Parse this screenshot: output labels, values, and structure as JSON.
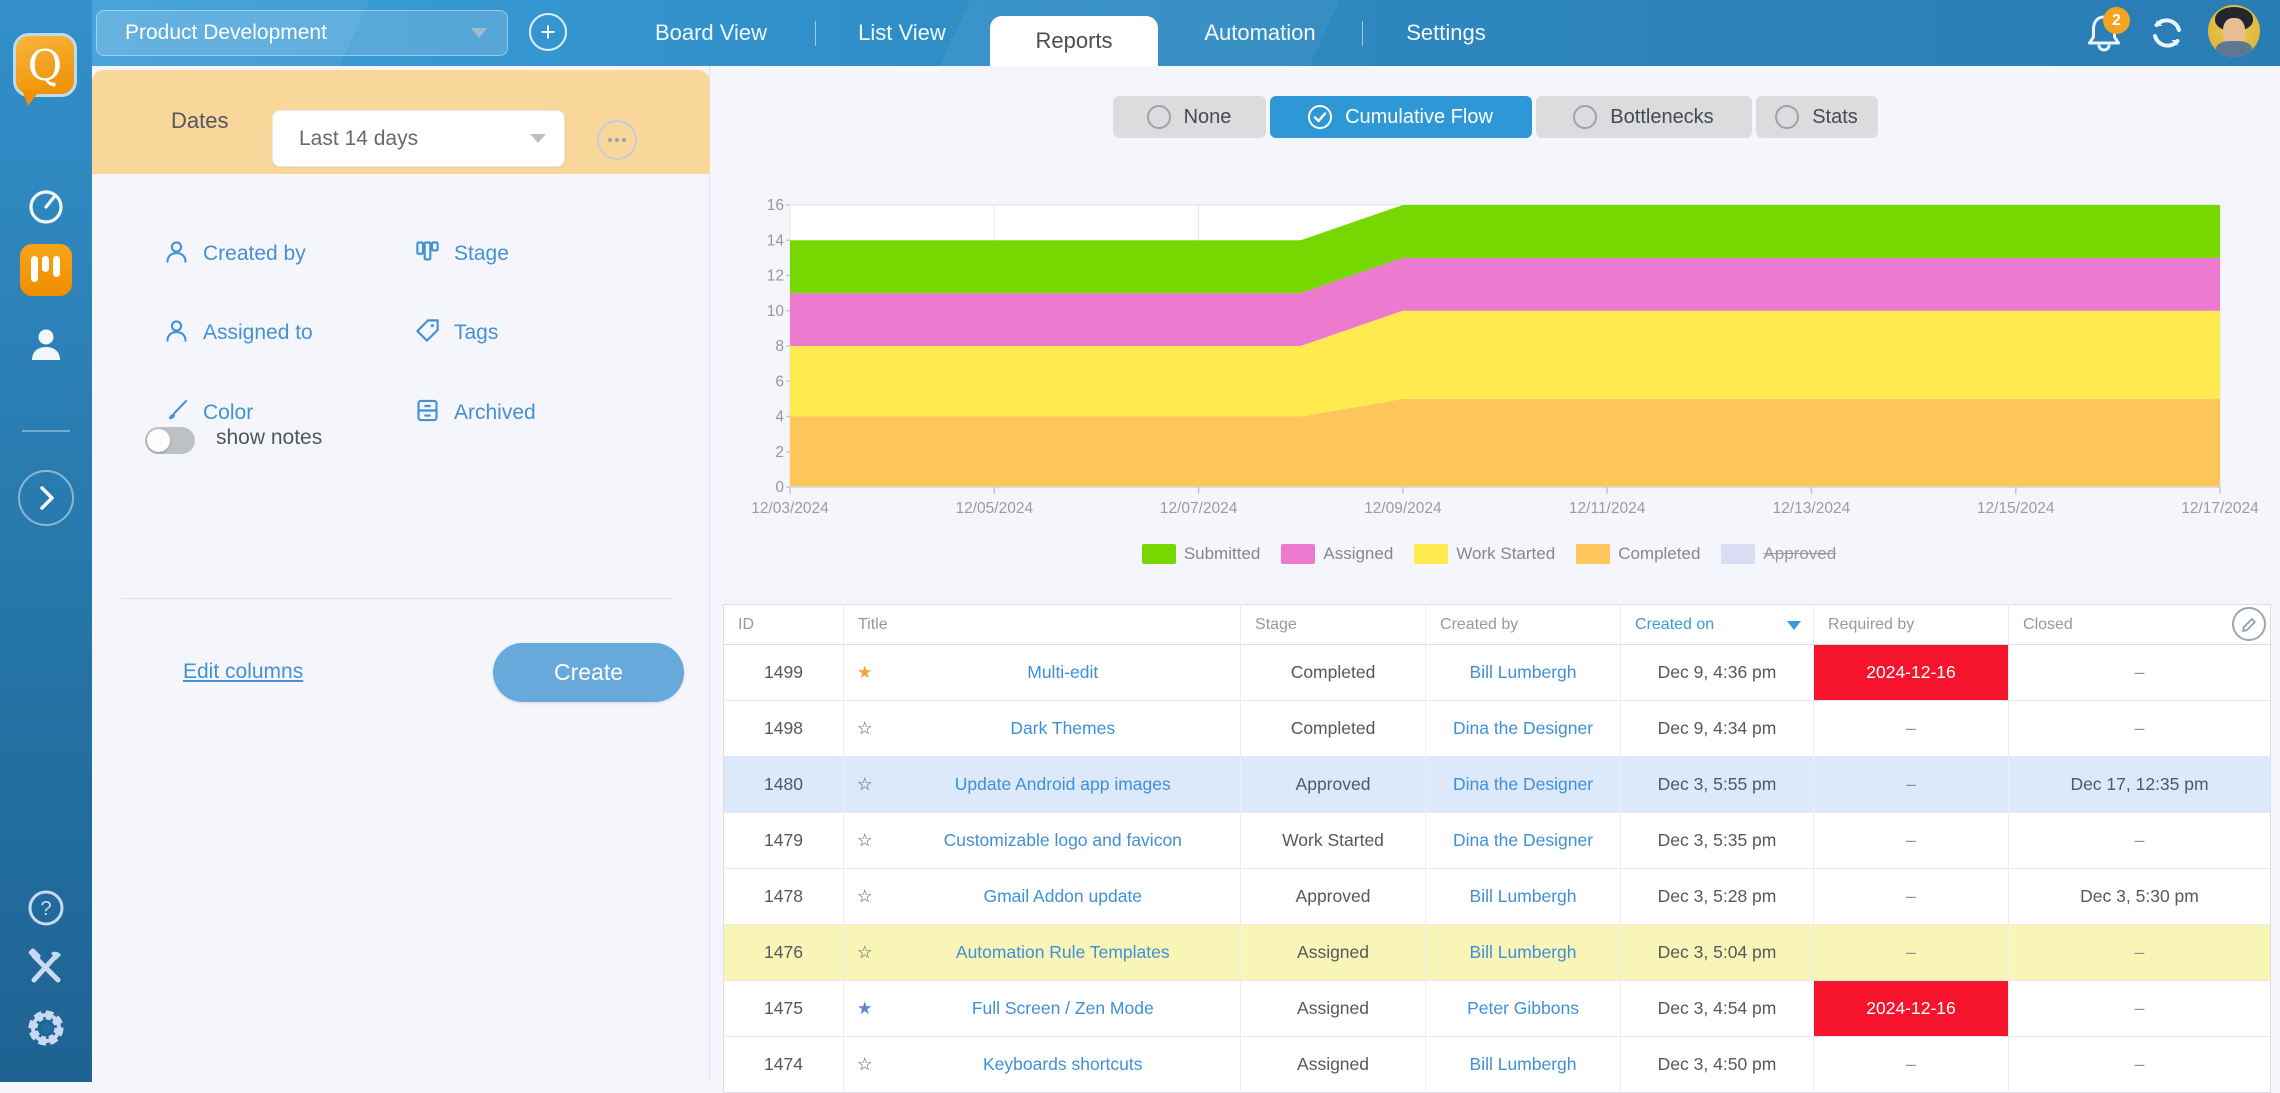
{
  "topbar": {
    "project_selector": "Product Development",
    "add_button": "+",
    "tabs": [
      {
        "label": "Board View",
        "active": false
      },
      {
        "label": "List View",
        "active": false
      },
      {
        "label": "Reports",
        "active": true
      },
      {
        "label": "Automation",
        "active": false
      },
      {
        "label": "Settings",
        "active": false
      }
    ],
    "notification_count": "2"
  },
  "filter_panel": {
    "dates_label": "Dates",
    "dates_value": "Last 14 days",
    "filters": [
      {
        "icon": "person-icon",
        "label": "Created by"
      },
      {
        "icon": "stage-icon",
        "label": "Stage"
      },
      {
        "icon": "person-icon",
        "label": "Assigned to"
      },
      {
        "icon": "tag-icon",
        "label": "Tags"
      },
      {
        "icon": "brush-icon",
        "label": "Color"
      },
      {
        "icon": "archive-icon",
        "label": "Archived"
      }
    ],
    "show_notes": {
      "label": "show notes",
      "enabled": false
    },
    "edit_columns_label": "Edit columns",
    "create_button_label": "Create"
  },
  "report_modes": {
    "active_color": "#2E97D5",
    "options": [
      {
        "label": "None",
        "selected": false
      },
      {
        "label": "Cumulative Flow",
        "selected": true
      },
      {
        "label": "Bottlenecks",
        "selected": false
      },
      {
        "label": "Stats",
        "selected": false
      }
    ]
  },
  "chart_data": {
    "type": "area",
    "stacked": true,
    "x": [
      "12/03/2024",
      "12/04/2024",
      "12/05/2024",
      "12/06/2024",
      "12/07/2024",
      "12/08/2024",
      "12/09/2024",
      "12/10/2024",
      "12/11/2024",
      "12/12/2024",
      "12/13/2024",
      "12/14/2024",
      "12/15/2024",
      "12/16/2024",
      "12/17/2024"
    ],
    "tick_every": 2,
    "series": [
      {
        "name": "Completed",
        "color": "#FFC65C",
        "values": [
          4,
          4,
          4,
          4,
          4,
          4,
          5,
          5,
          5,
          5,
          5,
          5,
          5,
          5,
          5
        ]
      },
      {
        "name": "Work Started",
        "color": "#FFEB4F",
        "values": [
          4,
          4,
          4,
          4,
          4,
          4,
          5,
          5,
          5,
          5,
          5,
          5,
          5,
          5,
          5
        ]
      },
      {
        "name": "Assigned",
        "color": "#EC7BD0",
        "values": [
          3,
          3,
          3,
          3,
          3,
          3,
          3,
          3,
          3,
          3,
          3,
          3,
          3,
          3,
          3
        ]
      },
      {
        "name": "Submitted",
        "color": "#76D701",
        "values": [
          3,
          3,
          3,
          3,
          3,
          3,
          3,
          3,
          3,
          3,
          3,
          3,
          3,
          3,
          3
        ]
      }
    ],
    "ylim": [
      0,
      16
    ],
    "ytick_step": 2,
    "grid": true,
    "legend_position": "bottom",
    "legend": [
      {
        "label": "Submitted",
        "color": "#76D701",
        "disabled": false
      },
      {
        "label": "Assigned",
        "color": "#EC7BD0",
        "disabled": false
      },
      {
        "label": "Work Started",
        "color": "#FFEB4F",
        "disabled": false
      },
      {
        "label": "Completed",
        "color": "#FFC65C",
        "disabled": false
      },
      {
        "label": "Approved",
        "color": "#D9DCF2",
        "disabled": true
      }
    ]
  },
  "table": {
    "columns": [
      {
        "label": "ID"
      },
      {
        "label": "Title"
      },
      {
        "label": "Stage"
      },
      {
        "label": "Created by"
      },
      {
        "label": "Created on",
        "sorted": "desc"
      },
      {
        "label": "Required by"
      },
      {
        "label": "Closed"
      }
    ],
    "overdue_color": "#F5142C",
    "row_highlight_colors": {
      "blue": "#DBE9FA",
      "yellow": "#F9F5B6"
    },
    "rows": [
      {
        "id": "1499",
        "star": "gold",
        "title": "Multi-edit",
        "stage": "Completed",
        "created_by": "Bill Lumbergh",
        "created_on": "Dec 9, 4:36 pm",
        "required_by": "2024-12-16",
        "required_overdue": true,
        "closed": "–",
        "highlight": "none"
      },
      {
        "id": "1498",
        "star": "none",
        "title": "Dark Themes",
        "stage": "Completed",
        "created_by": "Dina the Designer",
        "created_on": "Dec 9, 4:34 pm",
        "required_by": "–",
        "required_overdue": false,
        "closed": "–",
        "highlight": "none"
      },
      {
        "id": "1480",
        "star": "none",
        "title": "Update Android app images",
        "stage": "Approved",
        "created_by": "Dina the Designer",
        "created_on": "Dec 3, 5:55 pm",
        "required_by": "–",
        "required_overdue": false,
        "closed": "Dec 17, 12:35 pm",
        "highlight": "blue"
      },
      {
        "id": "1479",
        "star": "none",
        "title": "Customizable logo and favicon",
        "stage": "Work Started",
        "created_by": "Dina the Designer",
        "created_on": "Dec 3, 5:35 pm",
        "required_by": "–",
        "required_overdue": false,
        "closed": "–",
        "highlight": "none"
      },
      {
        "id": "1478",
        "star": "none",
        "title": "Gmail Addon update",
        "stage": "Approved",
        "created_by": "Bill Lumbergh",
        "created_on": "Dec 3, 5:28 pm",
        "required_by": "–",
        "required_overdue": false,
        "closed": "Dec 3, 5:30 pm",
        "highlight": "none"
      },
      {
        "id": "1476",
        "star": "none",
        "title": "Automation Rule Templates",
        "stage": "Assigned",
        "created_by": "Bill Lumbergh",
        "created_on": "Dec 3, 5:04 pm",
        "required_by": "–",
        "required_overdue": false,
        "closed": "–",
        "highlight": "yellow"
      },
      {
        "id": "1475",
        "star": "blue",
        "title": "Full Screen / Zen Mode",
        "stage": "Assigned",
        "created_by": "Peter Gibbons",
        "created_on": "Dec 3, 4:54 pm",
        "required_by": "2024-12-16",
        "required_overdue": true,
        "closed": "–",
        "highlight": "none"
      },
      {
        "id": "1474",
        "star": "none",
        "title": "Keyboards shortcuts",
        "stage": "Assigned",
        "created_by": "Bill Lumbergh",
        "created_on": "Dec 3, 4:50 pm",
        "required_by": "–",
        "required_overdue": false,
        "closed": "–",
        "highlight": "none"
      }
    ]
  }
}
